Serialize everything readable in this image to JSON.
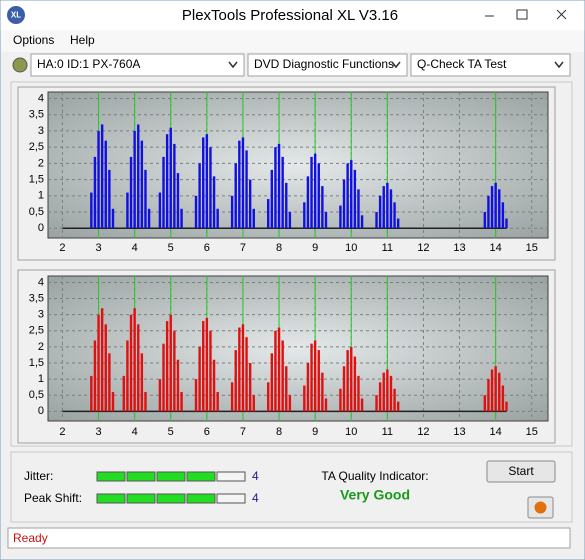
{
  "window": {
    "title": "PlexTools Professional XL V3.16",
    "icon": "XL"
  },
  "menu": [
    "Options",
    "Help"
  ],
  "toolbar": {
    "device": "HA:0 ID:1  PX-760A",
    "function": "DVD Diagnostic Functions",
    "test": "Q-Check TA Test"
  },
  "chart_data": [
    {
      "type": "bar",
      "color": "#1010e0",
      "grid": true,
      "marker_color": "#22cc22",
      "xlim": [
        1.6,
        15.45
      ],
      "ylim": [
        -0.3,
        4.2
      ],
      "xticks": [
        2,
        3,
        4,
        5,
        6,
        7,
        8,
        9,
        10,
        11,
        12,
        13,
        14,
        15
      ],
      "yticks": [
        0,
        {
          "value": 0.5,
          "label": "0,5"
        },
        1,
        {
          "value": 1.5,
          "label": "1,5"
        },
        2,
        {
          "value": 2.5,
          "label": "2,5"
        },
        3,
        {
          "value": 3.5,
          "label": "3,5"
        },
        4
      ],
      "markers": [
        3,
        4,
        5,
        6,
        7,
        8,
        9,
        10,
        11,
        14
      ],
      "x": [
        2.8,
        2.9,
        3.0,
        3.1,
        3.2,
        3.3,
        3.4,
        3.8,
        3.9,
        4.0,
        4.1,
        4.2,
        4.3,
        4.4,
        4.7,
        4.8,
        4.9,
        5.0,
        5.1,
        5.2,
        5.3,
        5.7,
        5.8,
        5.9,
        6.0,
        6.1,
        6.2,
        6.3,
        6.7,
        6.8,
        6.9,
        7.0,
        7.1,
        7.2,
        7.3,
        7.7,
        7.8,
        7.9,
        8.0,
        8.1,
        8.2,
        8.3,
        8.7,
        8.8,
        8.9,
        9.0,
        9.1,
        9.2,
        9.3,
        9.7,
        9.8,
        9.9,
        10.0,
        10.1,
        10.2,
        10.3,
        10.7,
        10.8,
        10.9,
        11.0,
        11.1,
        11.2,
        11.3,
        13.7,
        13.8,
        13.9,
        14.0,
        14.1,
        14.2,
        14.3
      ],
      "values": [
        1.1,
        2.2,
        3.0,
        3.2,
        2.7,
        1.8,
        0.6,
        1.1,
        2.2,
        3.0,
        3.2,
        2.7,
        1.8,
        0.6,
        1.1,
        2.2,
        2.9,
        3.1,
        2.6,
        1.7,
        0.6,
        1.0,
        2.0,
        2.8,
        2.9,
        2.5,
        1.6,
        0.6,
        1.0,
        2.0,
        2.7,
        2.8,
        2.4,
        1.5,
        0.6,
        0.9,
        1.8,
        2.5,
        2.6,
        2.2,
        1.4,
        0.5,
        0.8,
        1.6,
        2.2,
        2.3,
        2.0,
        1.3,
        0.5,
        0.7,
        1.5,
        2.0,
        2.1,
        1.8,
        1.2,
        0.4,
        0.5,
        1.0,
        1.3,
        1.4,
        1.2,
        0.8,
        0.3,
        0.5,
        1.0,
        1.3,
        1.4,
        1.2,
        0.8,
        0.3
      ]
    },
    {
      "type": "bar",
      "color": "#e01010",
      "grid": true,
      "marker_color": "#22cc22",
      "xlim": [
        1.6,
        15.45
      ],
      "ylim": [
        -0.3,
        4.2
      ],
      "xticks": [
        2,
        3,
        4,
        5,
        6,
        7,
        8,
        9,
        10,
        11,
        12,
        13,
        14,
        15
      ],
      "yticks": [
        0,
        {
          "value": 0.5,
          "label": "0,5"
        },
        1,
        {
          "value": 1.5,
          "label": "1,5"
        },
        2,
        {
          "value": 2.5,
          "label": "2,5"
        },
        3,
        {
          "value": 3.5,
          "label": "3,5"
        },
        4
      ],
      "markers": [
        3,
        4,
        5,
        6,
        7,
        8,
        9,
        10,
        11,
        14
      ],
      "x": [
        2.8,
        2.9,
        3.0,
        3.1,
        3.2,
        3.3,
        3.4,
        3.7,
        3.8,
        3.9,
        4.0,
        4.1,
        4.2,
        4.3,
        4.7,
        4.8,
        4.9,
        5.0,
        5.1,
        5.2,
        5.3,
        5.7,
        5.8,
        5.9,
        6.0,
        6.1,
        6.2,
        6.3,
        6.7,
        6.8,
        6.9,
        7.0,
        7.1,
        7.2,
        7.3,
        7.7,
        7.8,
        7.9,
        8.0,
        8.1,
        8.2,
        8.3,
        8.7,
        8.8,
        8.9,
        9.0,
        9.1,
        9.2,
        9.3,
        9.7,
        9.8,
        9.9,
        10.0,
        10.1,
        10.2,
        10.3,
        10.7,
        10.8,
        10.9,
        11.0,
        11.1,
        11.2,
        11.3,
        13.7,
        13.8,
        13.9,
        14.0,
        14.1,
        14.2,
        14.3
      ],
      "values": [
        1.1,
        2.2,
        3.0,
        3.2,
        2.7,
        1.8,
        0.6,
        1.1,
        2.2,
        3.0,
        3.2,
        2.7,
        1.8,
        0.6,
        1.0,
        2.1,
        2.8,
        3.0,
        2.5,
        1.6,
        0.6,
        1.0,
        2.0,
        2.8,
        2.9,
        2.5,
        1.6,
        0.6,
        0.9,
        1.9,
        2.6,
        2.7,
        2.3,
        1.5,
        0.5,
        0.9,
        1.8,
        2.5,
        2.6,
        2.2,
        1.4,
        0.5,
        0.8,
        1.5,
        2.1,
        2.2,
        1.9,
        1.2,
        0.4,
        0.7,
        1.4,
        1.9,
        2.0,
        1.7,
        1.1,
        0.4,
        0.5,
        0.9,
        1.2,
        1.3,
        1.1,
        0.7,
        0.3,
        0.5,
        1.0,
        1.3,
        1.4,
        1.2,
        0.8,
        0.3
      ]
    }
  ],
  "results": {
    "jitter_label": "Jitter:",
    "jitter": 4,
    "peak_shift_label": "Peak Shift:",
    "peak_shift": 4,
    "quality_label": "TA Quality Indicator:",
    "quality": "Very Good",
    "start": "Start"
  },
  "status": "Ready"
}
